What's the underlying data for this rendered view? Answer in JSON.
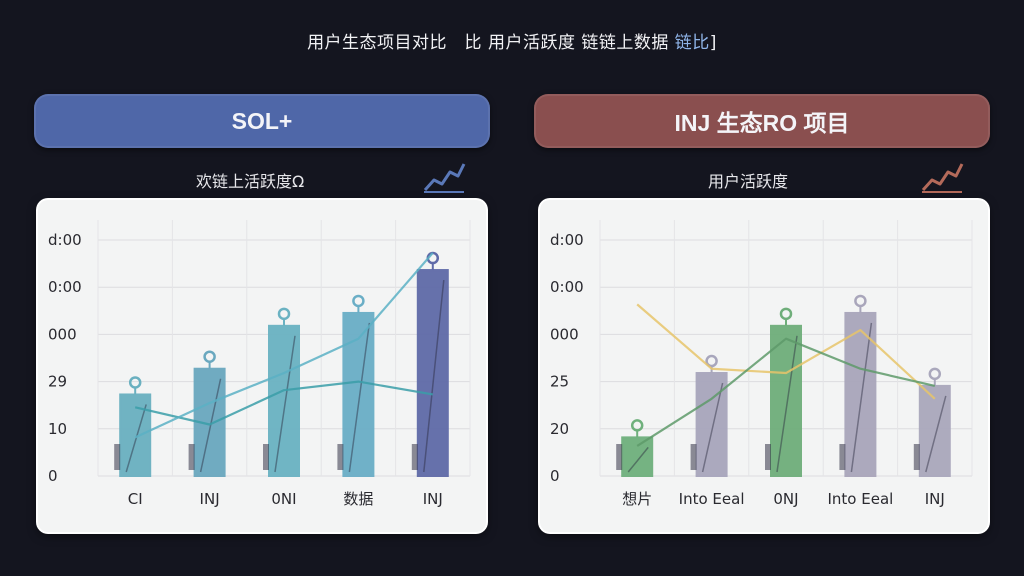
{
  "page": {
    "title_main": "用户生态项目对比　比 用户活跃度 链链上数据",
    "title_accent": "链比"
  },
  "chart_data": [
    {
      "type": "bar",
      "header": "SOL+",
      "subtitle": "欢链上活跃度Ω",
      "header_color": "#4f67a8",
      "y_tick_labels": [
        "0",
        "10",
        "29",
        "000",
        "0:00",
        "d:00"
      ],
      "categories": [
        "CI",
        "INJ",
        "0NI",
        "数据",
        "INJ"
      ],
      "values": [
        19,
        25,
        35,
        38,
        48
      ],
      "ylim": [
        0,
        55
      ],
      "bar_colors": [
        "#6ab0c0",
        "#6aa8bf",
        "#6ab2c2",
        "#6aaec6",
        "#5f6aa8"
      ],
      "line_series": [
        {
          "color": "#3a9ea8",
          "values": [
            16,
            12,
            20,
            22,
            19
          ]
        },
        {
          "color": "#5ab0c4",
          "values": [
            9,
            17,
            24,
            32,
            52
          ]
        }
      ],
      "grid": true
    },
    {
      "type": "bar",
      "header": "INJ 生态RO 项目",
      "subtitle": "用户活跃度",
      "header_color": "#8a4f4f",
      "y_tick_labels": [
        "0",
        "20",
        "25",
        "000",
        "0:00",
        "d:00"
      ],
      "categories": [
        "想片",
        "Into Eeal",
        "0NJ",
        "Into Eeal",
        "INJ"
      ],
      "values": [
        9,
        24,
        35,
        38,
        21
      ],
      "ylim": [
        0,
        55
      ],
      "bar_colors": [
        "#6fb07c",
        "#a8a6bc",
        "#6fae7a",
        "#a9a6bb",
        "#aaa8bc"
      ],
      "line_series": [
        {
          "color": "#e6c46a",
          "values": [
            40,
            25,
            24,
            34,
            18
          ]
        },
        {
          "color": "#5e9a6a",
          "values": [
            7,
            18,
            32,
            25,
            21
          ]
        }
      ],
      "grid": true
    }
  ]
}
